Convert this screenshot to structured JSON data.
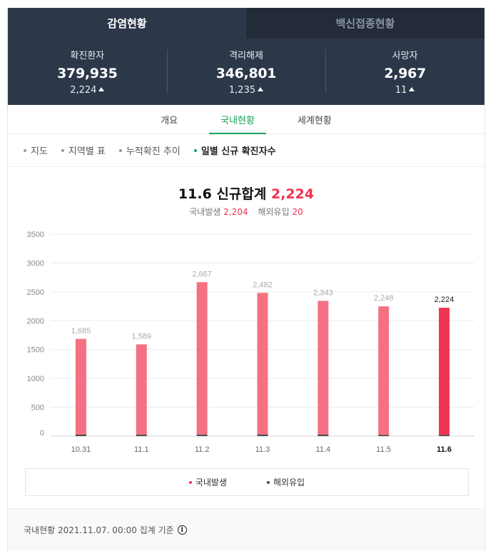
{
  "top_tabs": [
    {
      "label": "감염현황",
      "active": true
    },
    {
      "label": "백신접종현황",
      "active": false
    }
  ],
  "stats": [
    {
      "label": "확진환자",
      "value": "379,935",
      "delta": "2,224"
    },
    {
      "label": "격리해제",
      "value": "346,801",
      "delta": "1,235"
    },
    {
      "label": "사망자",
      "value": "2,967",
      "delta": "11"
    }
  ],
  "sub_tabs": [
    {
      "label": "개요",
      "active": false
    },
    {
      "label": "국내현황",
      "active": true
    },
    {
      "label": "세계현황",
      "active": false
    }
  ],
  "filters": [
    {
      "label": "지도",
      "active": false
    },
    {
      "label": "지역별 표",
      "active": false
    },
    {
      "label": "누적확진 추이",
      "active": false
    },
    {
      "label": "일별 신규 확진자수",
      "active": true
    }
  ],
  "headline": {
    "date": "11.6",
    "label": "신규합계",
    "total": "2,224"
  },
  "subline": {
    "domestic_label": "국내발생",
    "domestic_value": "2,204",
    "overseas_label": "해외유입",
    "overseas_value": "20"
  },
  "colors": {
    "domestic": "#f47183",
    "domestic_latest": "#f03552",
    "overseas": "#4a4a4a",
    "accent_green": "#19a35a",
    "header_bg": "#2c3849"
  },
  "chart_data": {
    "type": "bar",
    "stacked": true,
    "categories": [
      "10.31",
      "11.1",
      "11.2",
      "11.3",
      "11.4",
      "11.5",
      "11.6"
    ],
    "series": [
      {
        "name": "국내발생",
        "values": [
          1660,
          1565,
          2643,
          2456,
          2318,
          2227,
          2204
        ]
      },
      {
        "name": "해외유입",
        "values": [
          25,
          24,
          24,
          26,
          25,
          21,
          20
        ]
      }
    ],
    "totals": [
      1685,
      1589,
      2667,
      2482,
      2343,
      2248,
      2224
    ],
    "total_labels": [
      "1,685",
      "1,589",
      "2,667",
      "2,482",
      "2,343",
      "2,248",
      "2,224"
    ],
    "yticks": [
      0,
      500,
      1000,
      1500,
      2000,
      2500,
      3000,
      3500
    ],
    "ylim": [
      0,
      3500
    ],
    "highlight_index": 6,
    "grid": true
  },
  "legend": [
    {
      "label": "국내발생",
      "icon": "red-dot-icon",
      "color": "#f03552"
    },
    {
      "label": "해외유입",
      "icon": "dark-dot-icon",
      "color": "#4a4a4a"
    }
  ],
  "footer": {
    "text": "국내현황 2021.11.07. 00:00 집계 기준",
    "icon": "info-icon"
  }
}
